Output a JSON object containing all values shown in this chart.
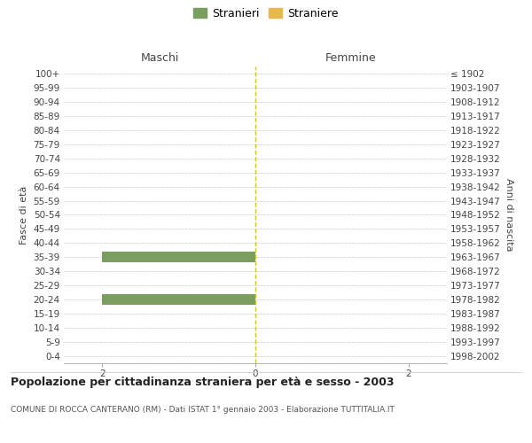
{
  "age_groups": [
    "100+",
    "95-99",
    "90-94",
    "85-89",
    "80-84",
    "75-79",
    "70-74",
    "65-69",
    "60-64",
    "55-59",
    "50-54",
    "45-49",
    "40-44",
    "35-39",
    "30-34",
    "25-29",
    "20-24",
    "15-19",
    "10-14",
    "5-9",
    "0-4"
  ],
  "birth_years": [
    "≤ 1902",
    "1903-1907",
    "1908-1912",
    "1913-1917",
    "1918-1922",
    "1923-1927",
    "1928-1932",
    "1933-1937",
    "1938-1942",
    "1943-1947",
    "1948-1952",
    "1953-1957",
    "1958-1962",
    "1963-1967",
    "1968-1972",
    "1973-1977",
    "1978-1982",
    "1983-1987",
    "1988-1992",
    "1993-1997",
    "1998-2002"
  ],
  "maschi_stranieri": [
    0,
    0,
    0,
    0,
    0,
    0,
    0,
    0,
    0,
    0,
    0,
    0,
    0,
    2,
    0,
    0,
    2,
    0,
    0,
    0,
    0
  ],
  "femmine_straniere": [
    0,
    0,
    0,
    0,
    0,
    0,
    0,
    0,
    0,
    0,
    0,
    0,
    0,
    0,
    0,
    0,
    0,
    0,
    0,
    0,
    0
  ],
  "xlim": 2.5,
  "color_stranieri": "#7a9e5f",
  "color_straniere": "#e8b84b",
  "title": "Popolazione per cittadinanza straniera per età e sesso - 2003",
  "subtitle": "COMUNE DI ROCCA CANTERANO (RM) - Dati ISTAT 1° gennaio 2003 - Elaborazione TUTTITALIA.IT",
  "ylabel_left": "Fasce di età",
  "ylabel_right": "Anni di nascita",
  "header_left": "Maschi",
  "header_right": "Femmine",
  "bg_color": "#ffffff",
  "grid_color": "#cccccc",
  "bar_height": 0.75,
  "centerline_color": "#c8c820",
  "tick_fontsize": 7.5,
  "header_fontsize": 9,
  "legend_fontsize": 9
}
